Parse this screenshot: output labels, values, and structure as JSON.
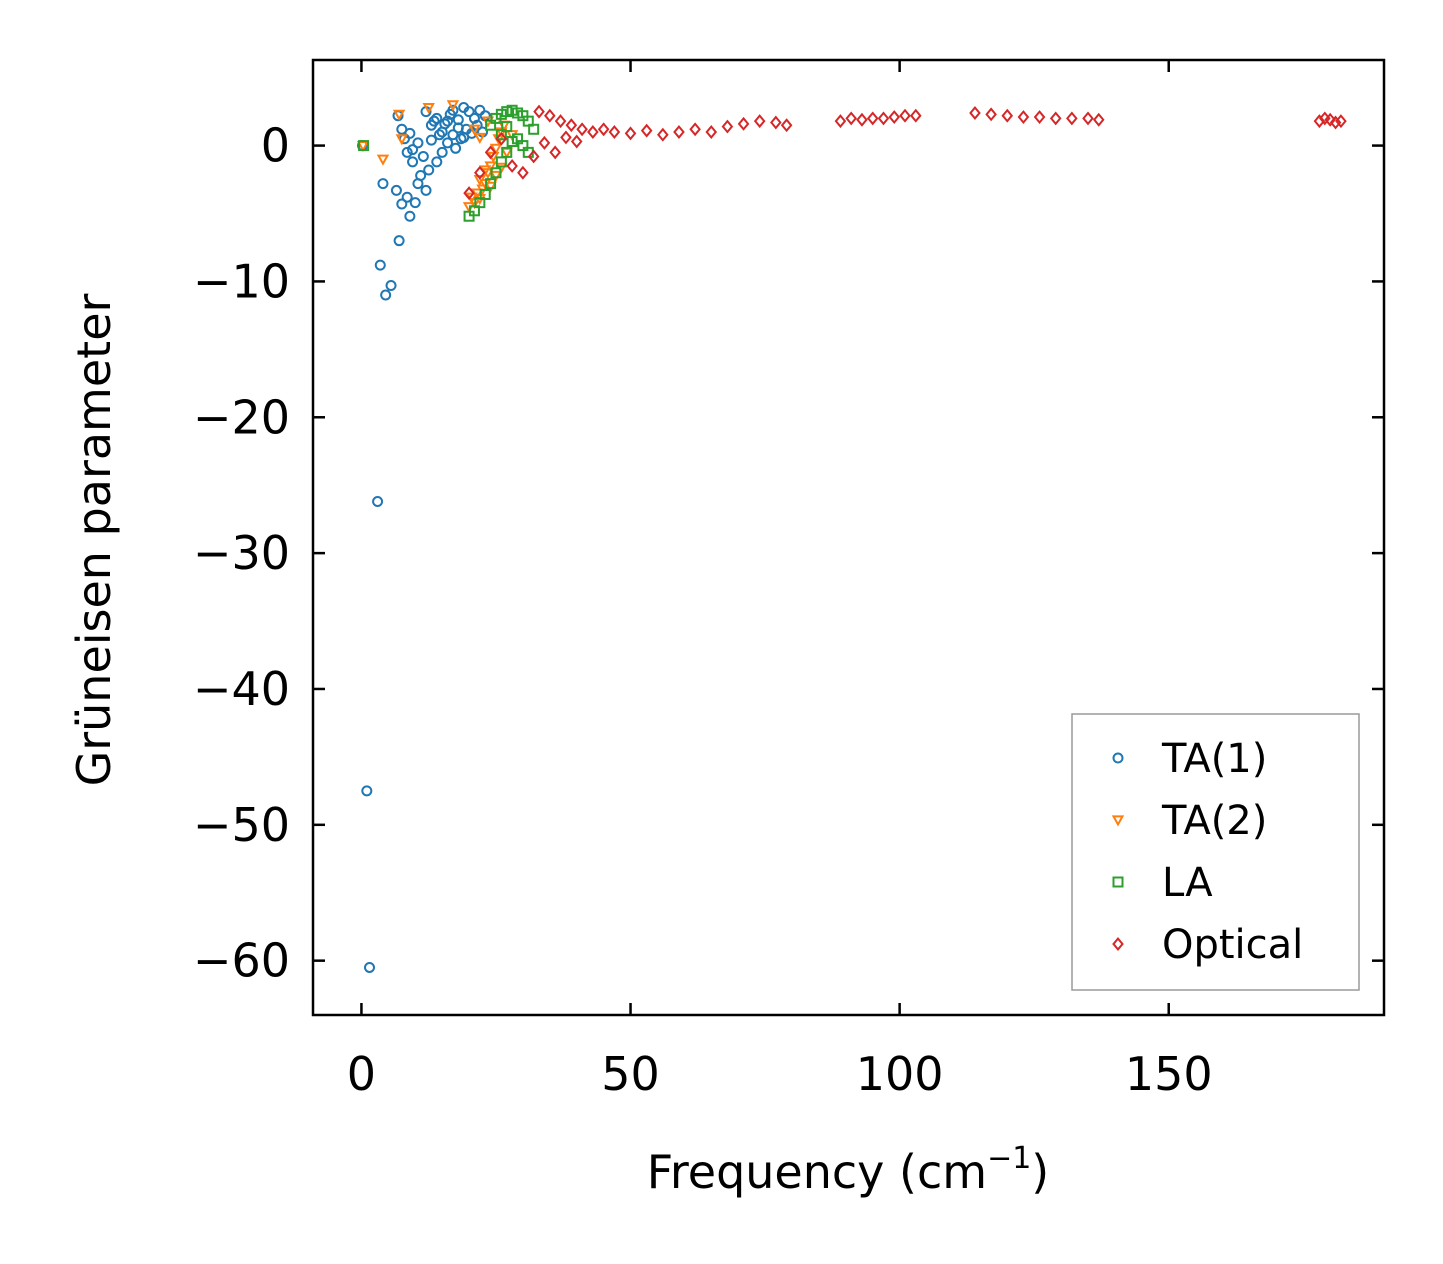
{
  "chart_data": {
    "type": "scatter",
    "xlabel": "Frequency (cm",
    "xlabel_sup": "−1",
    "xlabel_close": ")",
    "ylabel": "Grüneisen parameter",
    "xlim": [
      -9,
      190
    ],
    "ylim": [
      -64,
      6.3
    ],
    "xticks": [
      0,
      50,
      100,
      150
    ],
    "yticks": [
      0,
      -10,
      -20,
      -30,
      -40,
      -50,
      -60
    ],
    "ytick_labels": [
      "0",
      "−10",
      "−20",
      "−30",
      "−40",
      "−50",
      "−60"
    ],
    "grid": false,
    "legend_position": "lower-right",
    "series": [
      {
        "name": "TA(1)",
        "marker": "circle",
        "color": "#1f77b4",
        "points": [
          [
            0.2,
            0.0
          ],
          [
            1.0,
            -47.5
          ],
          [
            1.5,
            -60.5
          ],
          [
            3.0,
            -26.2
          ],
          [
            3.5,
            -8.8
          ],
          [
            4.0,
            -2.8
          ],
          [
            4.5,
            -11.0
          ],
          [
            5.5,
            -10.3
          ],
          [
            6.5,
            -3.3
          ],
          [
            7.0,
            -7.0
          ],
          [
            7.5,
            -4.3
          ],
          [
            8.5,
            -3.8
          ],
          [
            9.0,
            -5.2
          ],
          [
            9.5,
            -1.2
          ],
          [
            10.0,
            -4.2
          ],
          [
            10.5,
            -2.8
          ],
          [
            6.8,
            2.2
          ],
          [
            7.5,
            1.2
          ],
          [
            8.0,
            0.5
          ],
          [
            8.5,
            -0.5
          ],
          [
            9.0,
            0.9
          ],
          [
            9.5,
            -0.3
          ],
          [
            10.5,
            0.2
          ],
          [
            11.0,
            -2.2
          ],
          [
            11.5,
            -0.8
          ],
          [
            12.0,
            -3.3
          ],
          [
            12.5,
            -1.8
          ],
          [
            13.0,
            0.4
          ],
          [
            13.5,
            1.8
          ],
          [
            14.0,
            -1.2
          ],
          [
            14.5,
            0.8
          ],
          [
            15.0,
            -0.5
          ],
          [
            15.5,
            1.6
          ],
          [
            16.0,
            0.2
          ],
          [
            16.5,
            2.3
          ],
          [
            17.0,
            0.8
          ],
          [
            17.5,
            -0.2
          ],
          [
            18.0,
            1.9
          ],
          [
            18.5,
            0.5
          ],
          [
            19.0,
            2.8
          ],
          [
            19.5,
            1.2
          ],
          [
            20.0,
            2.5
          ],
          [
            20.5,
            0.9
          ],
          [
            21.0,
            2.0
          ],
          [
            21.5,
            1.5
          ],
          [
            22.0,
            2.6
          ],
          [
            22.5,
            1.0
          ],
          [
            23.0,
            2.2
          ],
          [
            12.0,
            2.5
          ],
          [
            13.0,
            1.5
          ],
          [
            14.0,
            2.0
          ],
          [
            15.0,
            1.0
          ],
          [
            16.0,
            1.8
          ],
          [
            17.0,
            2.6
          ],
          [
            18.0,
            1.3
          ],
          [
            19.0,
            0.6
          ]
        ]
      },
      {
        "name": "TA(2)",
        "marker": "triangle-down",
        "color": "#ff7f0e",
        "points": [
          [
            0.3,
            0.0
          ],
          [
            4.0,
            -1.0
          ],
          [
            7.0,
            2.3
          ],
          [
            7.5,
            0.5
          ],
          [
            12.5,
            2.8
          ],
          [
            17.0,
            3.0
          ],
          [
            20.0,
            -4.5
          ],
          [
            20.5,
            -3.8
          ],
          [
            21.0,
            -4.2
          ],
          [
            21.5,
            -3.5
          ],
          [
            22.0,
            -3.9
          ],
          [
            22.5,
            -3.2
          ],
          [
            23.0,
            -2.8
          ],
          [
            23.5,
            -2.0
          ],
          [
            24.0,
            -1.5
          ],
          [
            24.5,
            -0.8
          ],
          [
            25.0,
            -0.2
          ],
          [
            25.5,
            0.5
          ],
          [
            26.0,
            1.0
          ],
          [
            26.5,
            1.5
          ],
          [
            22.0,
            -2.5
          ],
          [
            23.0,
            -1.8
          ],
          [
            24.0,
            -3.0
          ],
          [
            25.0,
            -2.2
          ],
          [
            26.0,
            -1.6
          ],
          [
            27.0,
            -0.5
          ],
          [
            28.0,
            0.8
          ],
          [
            21.0,
            1.2
          ],
          [
            22.0,
            0.6
          ],
          [
            23.5,
            1.8
          ]
        ]
      },
      {
        "name": "LA",
        "marker": "square",
        "color": "#2ca02c",
        "points": [
          [
            0.4,
            0.0
          ],
          [
            20.0,
            -5.2
          ],
          [
            21.0,
            -4.8
          ],
          [
            22.0,
            -4.2
          ],
          [
            23.0,
            -3.6
          ],
          [
            24.0,
            -2.8
          ],
          [
            25.0,
            -2.0
          ],
          [
            26.0,
            -1.2
          ],
          [
            27.0,
            -0.5
          ],
          [
            28.0,
            0.3
          ],
          [
            24.0,
            1.5
          ],
          [
            25.0,
            2.0
          ],
          [
            26.0,
            2.3
          ],
          [
            27.0,
            2.5
          ],
          [
            28.0,
            2.6
          ],
          [
            29.0,
            2.4
          ],
          [
            30.0,
            2.2
          ],
          [
            31.0,
            1.8
          ],
          [
            32.0,
            1.2
          ],
          [
            29.0,
            0.5
          ],
          [
            30.0,
            0.0
          ],
          [
            31.0,
            -0.5
          ],
          [
            26.0,
            0.8
          ],
          [
            27.0,
            1.4
          ]
        ]
      },
      {
        "name": "Optical",
        "marker": "diamond",
        "color": "#d62728",
        "points": [
          [
            20.0,
            -3.5
          ],
          [
            22.0,
            -2.0
          ],
          [
            24.0,
            -0.5
          ],
          [
            26.0,
            0.5
          ],
          [
            28.0,
            -1.5
          ],
          [
            30.0,
            -2.0
          ],
          [
            32.0,
            -0.8
          ],
          [
            33.0,
            2.5
          ],
          [
            35.0,
            2.2
          ],
          [
            37.0,
            1.8
          ],
          [
            39.0,
            1.5
          ],
          [
            41.0,
            1.2
          ],
          [
            43.0,
            1.0
          ],
          [
            45.0,
            1.2
          ],
          [
            47.0,
            1.0
          ],
          [
            50.0,
            0.9
          ],
          [
            53.0,
            1.1
          ],
          [
            56.0,
            0.8
          ],
          [
            59.0,
            1.0
          ],
          [
            62.0,
            1.2
          ],
          [
            65.0,
            1.0
          ],
          [
            68.0,
            1.4
          ],
          [
            71.0,
            1.6
          ],
          [
            74.0,
            1.8
          ],
          [
            77.0,
            1.7
          ],
          [
            79.0,
            1.5
          ],
          [
            34.0,
            0.2
          ],
          [
            36.0,
            -0.5
          ],
          [
            38.0,
            0.6
          ],
          [
            40.0,
            0.3
          ],
          [
            89.0,
            1.8
          ],
          [
            91.0,
            2.0
          ],
          [
            93.0,
            1.9
          ],
          [
            95.0,
            2.0
          ],
          [
            97.0,
            2.0
          ],
          [
            99.0,
            2.1
          ],
          [
            101.0,
            2.2
          ],
          [
            103.0,
            2.2
          ],
          [
            114.0,
            2.4
          ],
          [
            117.0,
            2.3
          ],
          [
            120.0,
            2.2
          ],
          [
            123.0,
            2.1
          ],
          [
            126.0,
            2.1
          ],
          [
            129.0,
            2.0
          ],
          [
            132.0,
            2.0
          ],
          [
            135.0,
            2.0
          ],
          [
            137.0,
            1.9
          ],
          [
            178.0,
            1.8
          ],
          [
            179.0,
            2.0
          ],
          [
            180.0,
            1.9
          ],
          [
            181.0,
            1.7
          ],
          [
            182.0,
            1.8
          ]
        ]
      }
    ]
  }
}
